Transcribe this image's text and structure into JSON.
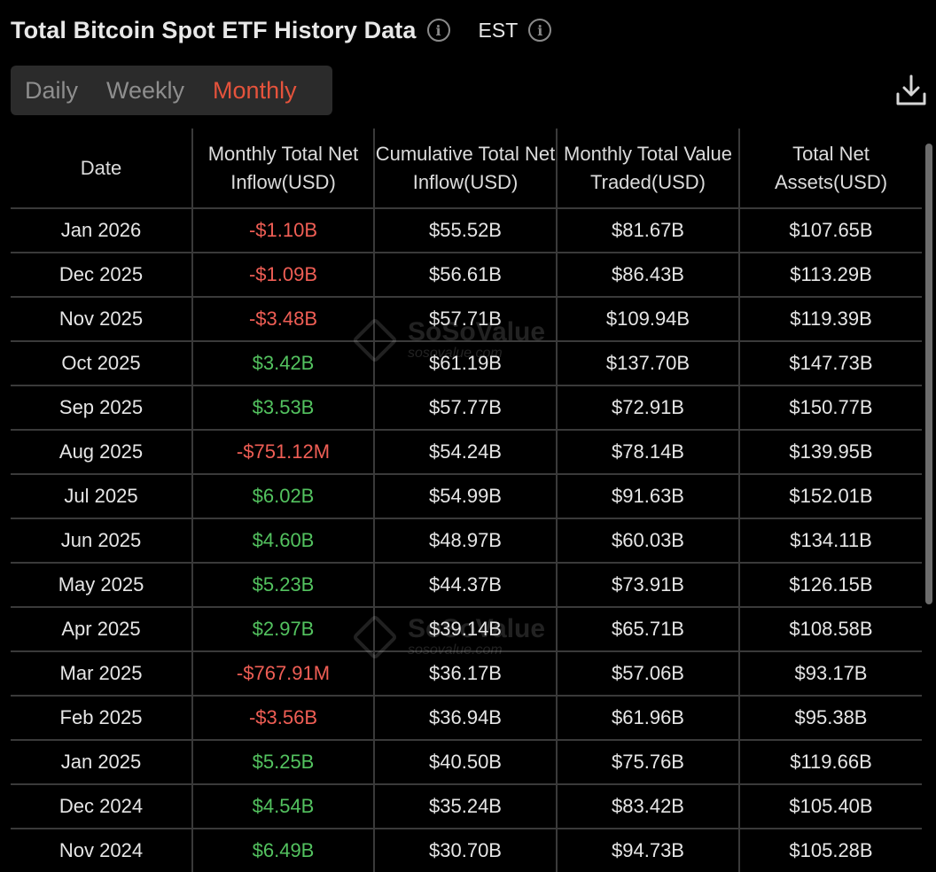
{
  "header": {
    "title": "Total Bitcoin Spot ETF History Data",
    "timezone": "EST"
  },
  "tabs": [
    {
      "label": "Daily",
      "active": false
    },
    {
      "label": "Weekly",
      "active": false
    },
    {
      "label": "Monthly",
      "active": true
    }
  ],
  "colors": {
    "accent": "#e5533c",
    "negative": "#ef5e55",
    "positive": "#53c25f",
    "background": "#000000"
  },
  "watermark": {
    "brand": "SoSoValue",
    "url": "sosovalue.com"
  },
  "table": {
    "columns": [
      "Date",
      "Monthly Total Net Inflow(USD)",
      "Cumulative Total Net Inflow(USD)",
      "Monthly Total Value Traded(USD)",
      "Total Net Assets(USD)"
    ],
    "rows": [
      {
        "date": "Jan 2026",
        "inflow": "-$1.10B",
        "sign": "neg",
        "cumulative": "$55.52B",
        "traded": "$81.67B",
        "assets": "$107.65B"
      },
      {
        "date": "Dec 2025",
        "inflow": "-$1.09B",
        "sign": "neg",
        "cumulative": "$56.61B",
        "traded": "$86.43B",
        "assets": "$113.29B"
      },
      {
        "date": "Nov 2025",
        "inflow": "-$3.48B",
        "sign": "neg",
        "cumulative": "$57.71B",
        "traded": "$109.94B",
        "assets": "$119.39B"
      },
      {
        "date": "Oct 2025",
        "inflow": "$3.42B",
        "sign": "pos",
        "cumulative": "$61.19B",
        "traded": "$137.70B",
        "assets": "$147.73B"
      },
      {
        "date": "Sep 2025",
        "inflow": "$3.53B",
        "sign": "pos",
        "cumulative": "$57.77B",
        "traded": "$72.91B",
        "assets": "$150.77B"
      },
      {
        "date": "Aug 2025",
        "inflow": "-$751.12M",
        "sign": "neg",
        "cumulative": "$54.24B",
        "traded": "$78.14B",
        "assets": "$139.95B"
      },
      {
        "date": "Jul 2025",
        "inflow": "$6.02B",
        "sign": "pos",
        "cumulative": "$54.99B",
        "traded": "$91.63B",
        "assets": "$152.01B"
      },
      {
        "date": "Jun 2025",
        "inflow": "$4.60B",
        "sign": "pos",
        "cumulative": "$48.97B",
        "traded": "$60.03B",
        "assets": "$134.11B"
      },
      {
        "date": "May 2025",
        "inflow": "$5.23B",
        "sign": "pos",
        "cumulative": "$44.37B",
        "traded": "$73.91B",
        "assets": "$126.15B"
      },
      {
        "date": "Apr 2025",
        "inflow": "$2.97B",
        "sign": "pos",
        "cumulative": "$39.14B",
        "traded": "$65.71B",
        "assets": "$108.58B"
      },
      {
        "date": "Mar 2025",
        "inflow": "-$767.91M",
        "sign": "neg",
        "cumulative": "$36.17B",
        "traded": "$57.06B",
        "assets": "$93.17B"
      },
      {
        "date": "Feb 2025",
        "inflow": "-$3.56B",
        "sign": "neg",
        "cumulative": "$36.94B",
        "traded": "$61.96B",
        "assets": "$95.38B"
      },
      {
        "date": "Jan 2025",
        "inflow": "$5.25B",
        "sign": "pos",
        "cumulative": "$40.50B",
        "traded": "$75.76B",
        "assets": "$119.66B"
      },
      {
        "date": "Dec 2024",
        "inflow": "$4.54B",
        "sign": "pos",
        "cumulative": "$35.24B",
        "traded": "$83.42B",
        "assets": "$105.40B"
      },
      {
        "date": "Nov 2024",
        "inflow": "$6.49B",
        "sign": "pos",
        "cumulative": "$30.70B",
        "traded": "$94.73B",
        "assets": "$105.28B"
      }
    ]
  },
  "icons": {
    "info": "info-icon",
    "download": "download-icon"
  }
}
